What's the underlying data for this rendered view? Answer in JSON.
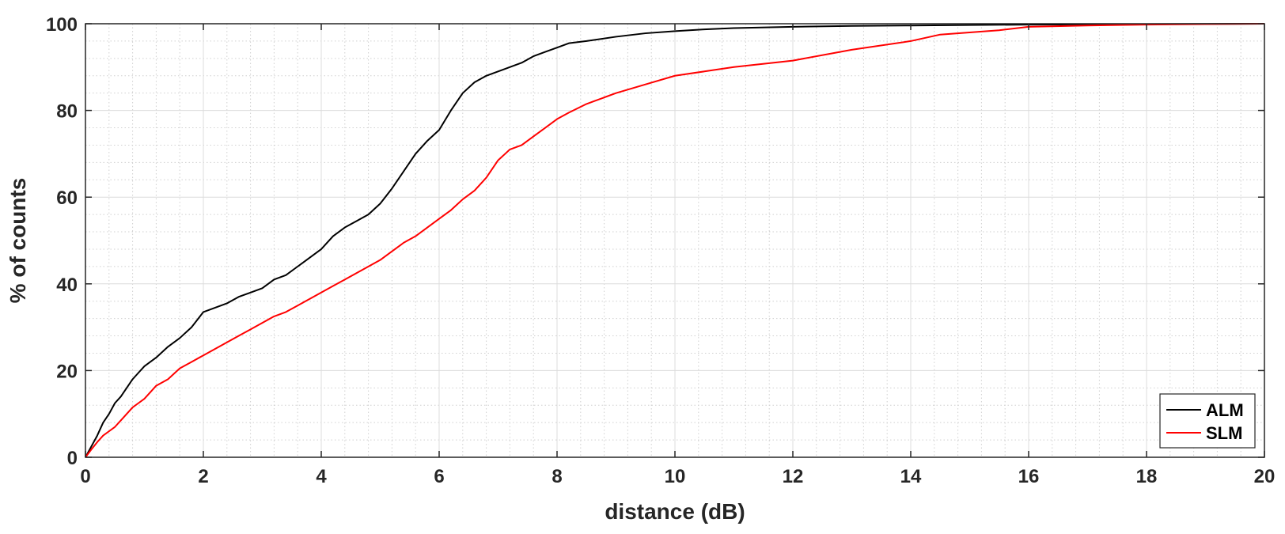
{
  "chart_data": {
    "type": "line",
    "xlabel": "distance (dB)",
    "ylabel": "% of counts",
    "xlim": [
      0,
      20
    ],
    "ylim": [
      0,
      100
    ],
    "x_ticks": [
      0,
      2,
      4,
      6,
      8,
      10,
      12,
      14,
      16,
      18,
      20
    ],
    "y_ticks": [
      0,
      20,
      40,
      60,
      80,
      100
    ],
    "x_tick_labels": [
      "0",
      "2",
      "4",
      "6",
      "8",
      "10",
      "12",
      "14",
      "16",
      "18",
      "20"
    ],
    "y_tick_labels": [
      "0",
      "20",
      "40",
      "60",
      "80",
      "100"
    ],
    "grid": true,
    "minor_grid": true,
    "legend_position": "bottom-right",
    "series": [
      {
        "name": "ALM",
        "color": "#000000",
        "x": [
          0,
          0.1,
          0.2,
          0.3,
          0.4,
          0.5,
          0.6,
          0.7,
          0.8,
          0.9,
          1.0,
          1.2,
          1.4,
          1.6,
          1.8,
          2.0,
          2.2,
          2.4,
          2.6,
          2.8,
          3.0,
          3.2,
          3.4,
          3.6,
          3.8,
          4.0,
          4.2,
          4.4,
          4.6,
          4.8,
          5.0,
          5.2,
          5.4,
          5.6,
          5.8,
          6.0,
          6.2,
          6.4,
          6.6,
          6.8,
          7.0,
          7.2,
          7.4,
          7.6,
          7.8,
          8.0,
          8.2,
          8.5,
          9.0,
          9.5,
          10.0,
          10.5,
          11.0,
          12.0,
          13.0,
          14.0,
          15.0,
          16.0,
          17.0,
          18.0,
          19.0,
          20.0
        ],
        "y": [
          0,
          2.5,
          5,
          8,
          10,
          12.5,
          14,
          16,
          18,
          19.5,
          21,
          23,
          25.5,
          27.5,
          30,
          33.5,
          34.5,
          35.5,
          37,
          38,
          39,
          41,
          42,
          44,
          46,
          48,
          51,
          53,
          54.5,
          56,
          58.5,
          62,
          66,
          70,
          73,
          75.5,
          80,
          84,
          86.5,
          88,
          89,
          90,
          91,
          92.5,
          93.5,
          94.5,
          95.5,
          96,
          97,
          97.8,
          98.3,
          98.7,
          99,
          99.3,
          99.5,
          99.6,
          99.7,
          99.8,
          99.85,
          99.9,
          99.95,
          100
        ]
      },
      {
        "name": "SLM",
        "color": "#ff0000",
        "x": [
          0,
          0.1,
          0.2,
          0.3,
          0.4,
          0.5,
          0.6,
          0.7,
          0.8,
          0.9,
          1.0,
          1.2,
          1.4,
          1.6,
          1.8,
          2.0,
          2.2,
          2.4,
          2.6,
          2.8,
          3.0,
          3.2,
          3.4,
          3.6,
          3.8,
          4.0,
          4.2,
          4.4,
          4.6,
          4.8,
          5.0,
          5.2,
          5.4,
          5.6,
          5.8,
          6.0,
          6.2,
          6.4,
          6.6,
          6.8,
          7.0,
          7.2,
          7.4,
          7.6,
          7.8,
          8.0,
          8.2,
          8.5,
          9.0,
          9.5,
          10.0,
          10.5,
          11.0,
          12.0,
          13.0,
          14.0,
          14.5,
          15.0,
          15.5,
          16.0,
          17.0,
          18.0,
          19.0,
          20.0
        ],
        "y": [
          0,
          1.8,
          3.5,
          5,
          6,
          7,
          8.5,
          10,
          11.5,
          12.5,
          13.5,
          16.5,
          18,
          20.5,
          22,
          23.5,
          25,
          26.5,
          28,
          29.5,
          31,
          32.5,
          33.5,
          35,
          36.5,
          38,
          39.5,
          41,
          42.5,
          44,
          45.5,
          47.5,
          49.5,
          51,
          53,
          55,
          57,
          59.5,
          61.5,
          64.5,
          68.5,
          71,
          72,
          74,
          76,
          78,
          79.5,
          81.5,
          84,
          86,
          88,
          89,
          90,
          91.5,
          94,
          96,
          97.5,
          98,
          98.5,
          99.3,
          99.6,
          99.8,
          99.9,
          100
        ]
      }
    ]
  }
}
